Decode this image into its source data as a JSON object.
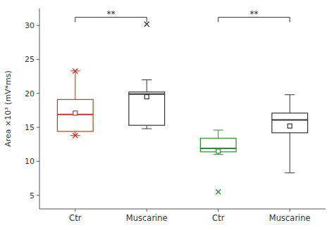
{
  "chart_data": {
    "type": "box",
    "categories": [
      "Ctr",
      "Muscarine",
      "Ctr",
      "Muscarine"
    ],
    "ylabel": "Area ×10³ (mV*ms)",
    "ylim": [
      3.0,
      32.5
    ],
    "yticks": [
      5,
      10,
      15,
      20,
      25,
      30
    ],
    "boxes": [
      {
        "color": "#c0392b",
        "q1": 14.4,
        "median": 16.9,
        "q3": 19.1,
        "whisker_low": 13.8,
        "whisker_high": 23.3,
        "mean": 17.1,
        "fliers_low": [
          13.8
        ],
        "fliers_high": [
          23.3
        ]
      },
      {
        "color": "#333333",
        "q1": 15.3,
        "median": 19.9,
        "q3": 20.2,
        "whisker_low": 14.8,
        "whisker_high": 22.0,
        "mean": 19.5,
        "fliers_low": [],
        "fliers_high": [
          30.2
        ]
      },
      {
        "color": "#2e8b2e",
        "q1": 11.4,
        "median": 11.9,
        "q3": 13.4,
        "whisker_low": 11.0,
        "whisker_high": 14.6,
        "mean": 11.5,
        "fliers_low": [
          5.5
        ],
        "fliers_high": []
      },
      {
        "color": "#333333",
        "q1": 14.2,
        "median": 16.1,
        "q3": 17.1,
        "whisker_low": 8.3,
        "whisker_high": 19.8,
        "mean": 15.2,
        "fliers_low": [],
        "fliers_high": []
      }
    ],
    "annotations": [
      {
        "text": "**",
        "start": 0,
        "end": 1,
        "y": 31.2
      },
      {
        "text": "**",
        "start": 2,
        "end": 3,
        "y": 31.2
      }
    ]
  }
}
